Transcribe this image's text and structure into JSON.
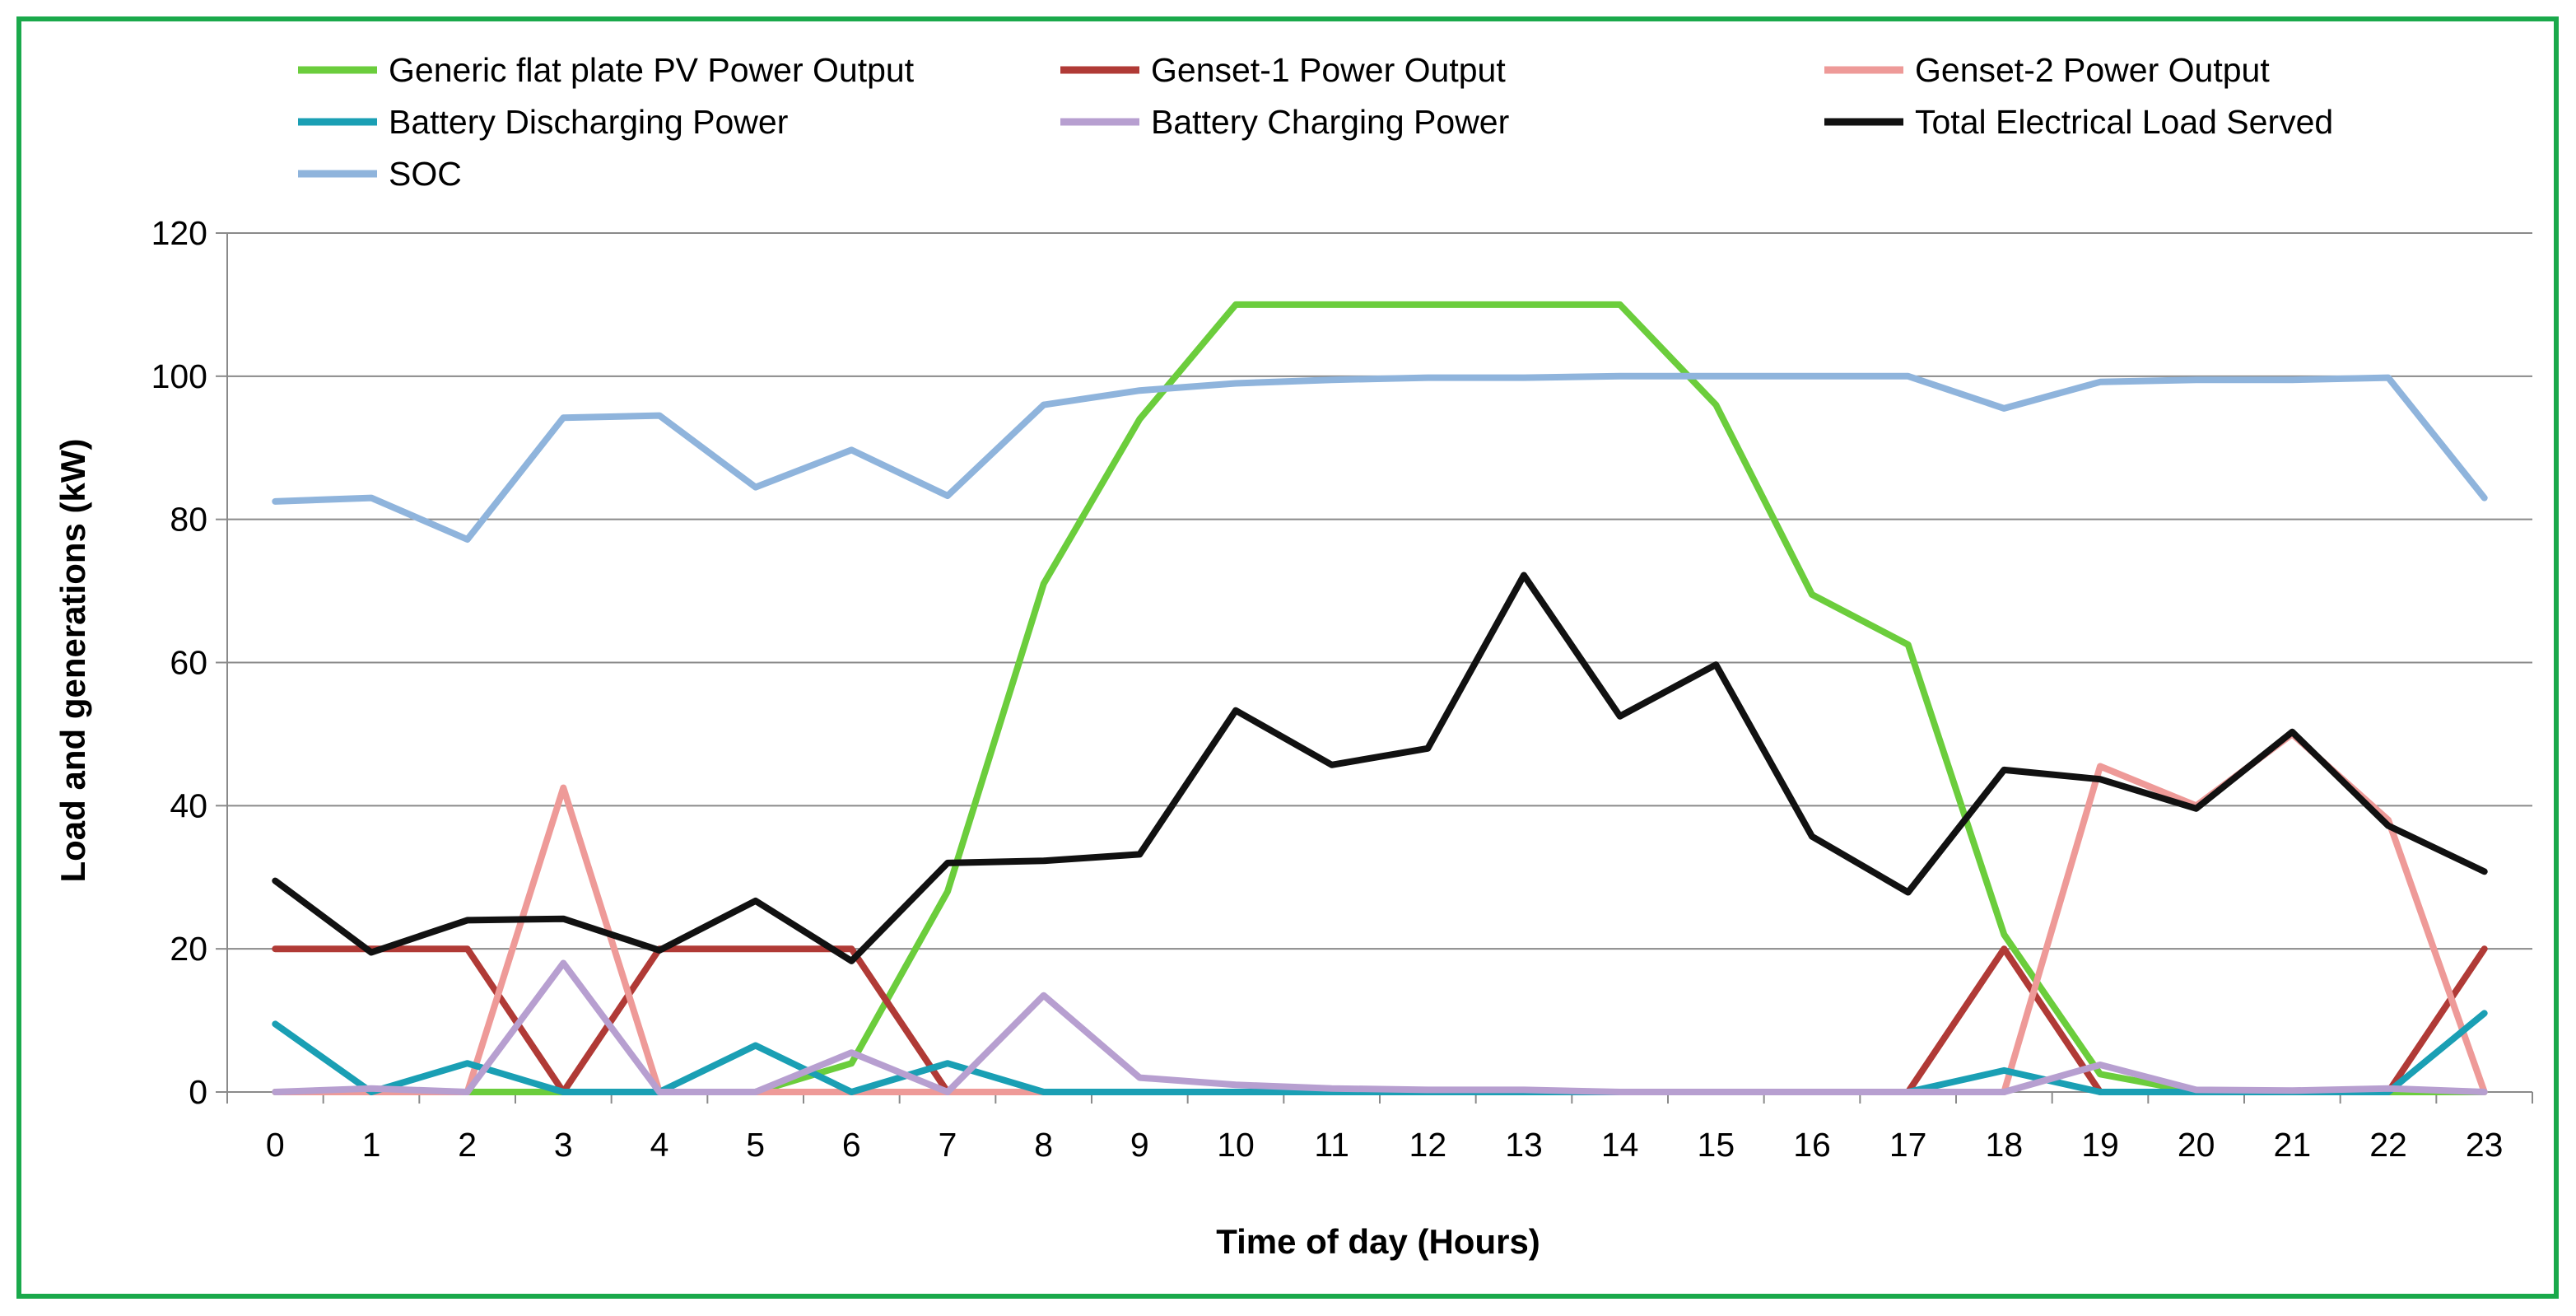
{
  "chart_data": {
    "type": "line",
    "title": "",
    "xlabel": "Time of day (Hours)",
    "ylabel": "Load and generations (kW)",
    "ylim": [
      0,
      120
    ],
    "yticks": [
      "0",
      "20",
      "40",
      "60",
      "80",
      "100",
      "120"
    ],
    "grid": true,
    "legend_position": "top",
    "categories": [
      "0",
      "1",
      "2",
      "3",
      "4",
      "5",
      "6",
      "7",
      "8",
      "9",
      "10",
      "11",
      "12",
      "13",
      "14",
      "15",
      "16",
      "17",
      "18",
      "19",
      "20",
      "21",
      "22",
      "23"
    ],
    "series": [
      {
        "name": "Generic flat plate PV Power Output",
        "color": "#6bcd3c",
        "values": [
          0,
          0,
          0,
          0,
          0,
          0,
          4,
          28,
          71,
          94,
          110,
          110,
          110,
          110,
          110,
          96,
          69.5,
          62.5,
          22,
          2.5,
          0,
          0,
          0,
          0
        ]
      },
      {
        "name": "Genset-1 Power Output",
        "color": "#b03a36",
        "values": [
          20,
          20,
          20,
          0,
          20,
          20,
          20,
          0,
          0,
          0,
          0,
          0,
          0,
          0,
          0,
          0,
          0,
          0,
          20,
          0,
          0,
          0,
          0,
          20
        ]
      },
      {
        "name": "Genset-2 Power Output",
        "color": "#ee9a98",
        "values": [
          0,
          0,
          0,
          42.5,
          0,
          0,
          0,
          0,
          0,
          0,
          0,
          0,
          0,
          0,
          0,
          0,
          0,
          0,
          0,
          45.5,
          40,
          50,
          38,
          0
        ]
      },
      {
        "name": "Battery Discharging Power",
        "color": "#1a9fb4",
        "values": [
          9.5,
          0,
          4,
          0,
          0,
          6.5,
          0,
          4,
          0,
          0,
          0,
          0,
          0,
          0,
          0,
          0,
          0,
          0,
          3,
          0,
          0,
          0,
          0,
          11
        ]
      },
      {
        "name": "Battery Charging Power",
        "color": "#b79fd0",
        "values": [
          0,
          0.5,
          0,
          18,
          0,
          0,
          5.5,
          0,
          13.5,
          2,
          1,
          0.5,
          0.3,
          0.3,
          0,
          0,
          0,
          0,
          0,
          3.8,
          0.3,
          0.2,
          0.5,
          0
        ]
      },
      {
        "name": "Total Electrical Load Served",
        "color": "#111111",
        "values": [
          29.5,
          19.5,
          24,
          24.2,
          19.8,
          26.7,
          18.3,
          32,
          32.3,
          33.2,
          53.3,
          45.7,
          48,
          72.2,
          52.5,
          59.7,
          35.7,
          27.9,
          45,
          43.7,
          39.6,
          50.3,
          37.2,
          30.8
        ]
      },
      {
        "name": "SOC",
        "color": "#8fb4dc",
        "values": [
          82.5,
          83,
          77.2,
          94.2,
          94.5,
          84.5,
          89.7,
          83.3,
          96,
          98,
          99,
          99.5,
          99.8,
          99.8,
          100,
          100,
          100,
          100,
          95.5,
          99.2,
          99.5,
          99.5,
          99.8,
          83
        ]
      }
    ]
  }
}
